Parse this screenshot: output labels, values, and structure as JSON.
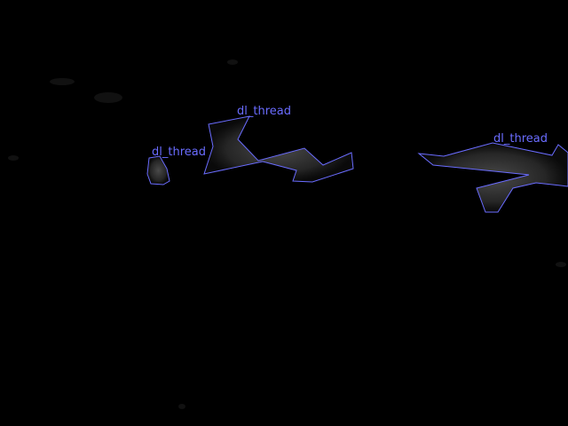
{
  "image": {
    "background_color": "#000000",
    "annotation_color": "#6a6cff",
    "blob_fill_color": "#3a3a3a"
  },
  "annotations": [
    {
      "id": "region-1",
      "label": "dl_thread"
    },
    {
      "id": "region-2",
      "label": "dl_thread"
    },
    {
      "id": "region-3",
      "label": "dl_thread"
    }
  ]
}
